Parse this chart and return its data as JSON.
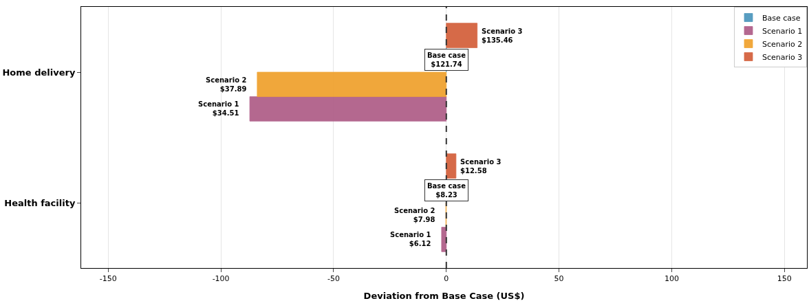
{
  "chart_data": {
    "type": "bar",
    "orientation": "horizontal",
    "categories": [
      "Home delivery",
      "Health facility"
    ],
    "series": [
      {
        "name": "Base case",
        "color": "#4f97bd",
        "values": [
          0,
          0
        ],
        "value_labels": [
          "Base case\n$121.74",
          "Base case\n$8.23"
        ]
      },
      {
        "name": "Scenario 1",
        "color": "#b0608a",
        "values": [
          -87.2,
          -2.1
        ],
        "value_labels": [
          "Scenario 1\n$34.51",
          "Scenario 1\n$6.12"
        ]
      },
      {
        "name": "Scenario 2",
        "color": "#f0a331",
        "values": [
          -83.9,
          -0.2
        ],
        "value_labels": [
          "Scenario 2\n$37.89",
          "Scenario 2\n$7.98"
        ]
      },
      {
        "name": "Scenario 3",
        "color": "#d4623f",
        "values": [
          13.7,
          4.3
        ],
        "value_labels": [
          "Scenario 3\n$135.46",
          "Scenario 3\n$12.58"
        ]
      }
    ],
    "xlabel": "Deviation from Base Case (US$)",
    "xlim": [
      -162,
      160
    ],
    "xticks": [
      -150,
      -100,
      -50,
      0,
      50,
      100,
      150
    ],
    "ref_lines": [
      {
        "axis": "x",
        "value": 0,
        "line_style": "dashed",
        "color": "#333333"
      }
    ],
    "grid": "x",
    "legend": "top right"
  }
}
